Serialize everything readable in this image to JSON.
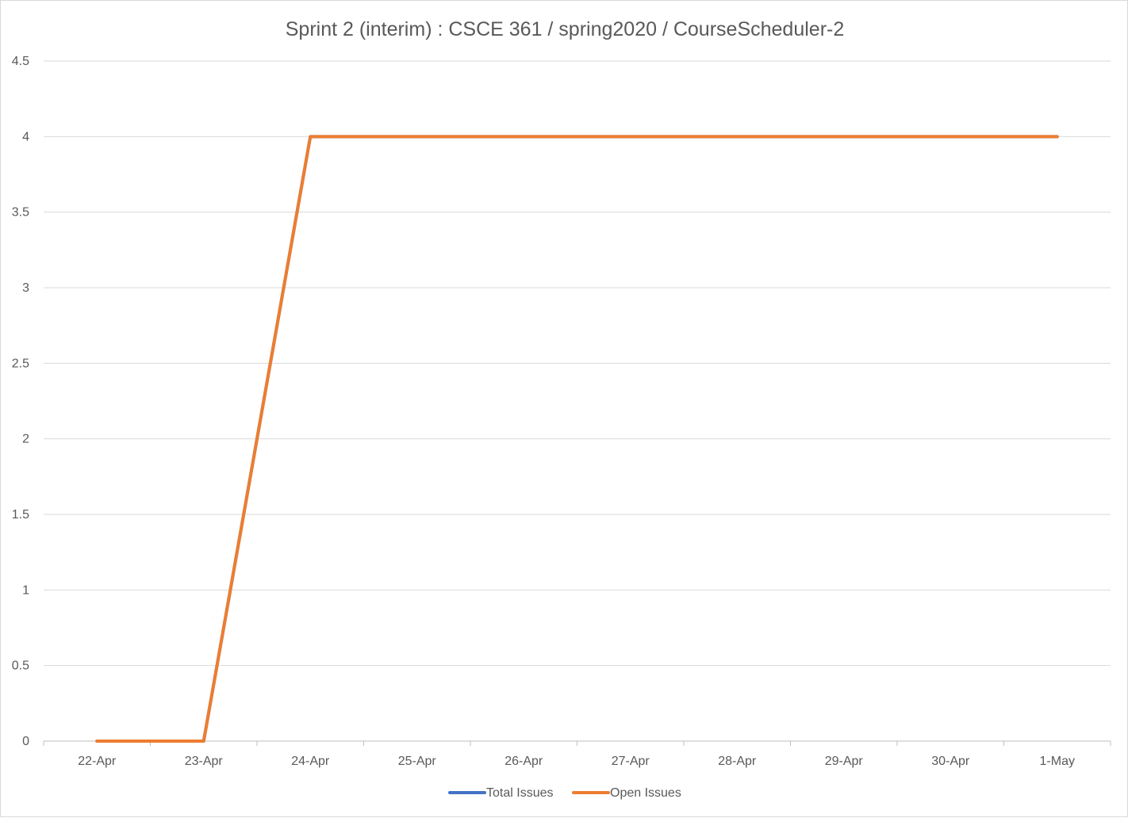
{
  "chart_data": {
    "type": "line",
    "title": "Sprint 2 (interim) : CSCE 361 / spring2020 / CourseScheduler-2",
    "xlabel": "",
    "ylabel": "",
    "categories": [
      "22-Apr",
      "23-Apr",
      "24-Apr",
      "25-Apr",
      "26-Apr",
      "27-Apr",
      "28-Apr",
      "29-Apr",
      "30-Apr",
      "1-May"
    ],
    "ylim": [
      0,
      4.5
    ],
    "yticks": [
      "0",
      "0.5",
      "1",
      "1.5",
      "2",
      "2.5",
      "3",
      "3.5",
      "4",
      "4.5"
    ],
    "grid": true,
    "legend_position": "bottom",
    "series": [
      {
        "name": "Total Issues",
        "color": "#4472c4",
        "values": [
          0,
          0,
          4,
          4,
          4,
          4,
          4,
          4,
          4,
          4
        ]
      },
      {
        "name": "Open Issues",
        "color": "#ed7d31",
        "values": [
          0,
          0,
          4,
          4,
          4,
          4,
          4,
          4,
          4,
          4
        ]
      }
    ]
  }
}
